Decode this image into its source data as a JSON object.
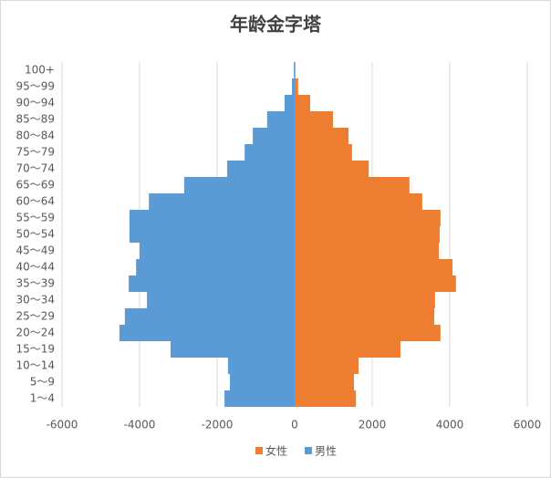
{
  "chart_data": {
    "type": "bar",
    "orientation": "horizontal",
    "stacked": false,
    "title": "年龄金字塔",
    "categories": [
      "1～4",
      "5～9",
      "10～14",
      "15～19",
      "20～24",
      "25～29",
      "30～34",
      "35～39",
      "40～44",
      "45～49",
      "50～54",
      "55～59",
      "60～64",
      "65～69",
      "70～74",
      "75～79",
      "80～84",
      "85～89",
      "90～94",
      "95～99",
      "100+"
    ],
    "series": [
      {
        "name": "女性",
        "color": "#ed7d31",
        "values": [
          1580,
          1530,
          1650,
          2730,
          3760,
          3600,
          3620,
          4160,
          4070,
          3720,
          3740,
          3760,
          3290,
          2960,
          1910,
          1480,
          1390,
          990,
          400,
          90,
          20
        ]
      },
      {
        "name": "男性",
        "color": "#5b9bd5",
        "values": [
          -1810,
          -1670,
          -1720,
          -3200,
          -4520,
          -4380,
          -3810,
          -4280,
          -4090,
          -4000,
          -4260,
          -4260,
          -3760,
          -2850,
          -1740,
          -1290,
          -1080,
          -710,
          -260,
          -70,
          -20
        ]
      }
    ],
    "xlim": [
      -6000,
      6000
    ],
    "xticks": [
      -6000,
      -4000,
      -2000,
      0,
      2000,
      4000,
      6000
    ],
    "grid": true,
    "legend": "bottom"
  }
}
